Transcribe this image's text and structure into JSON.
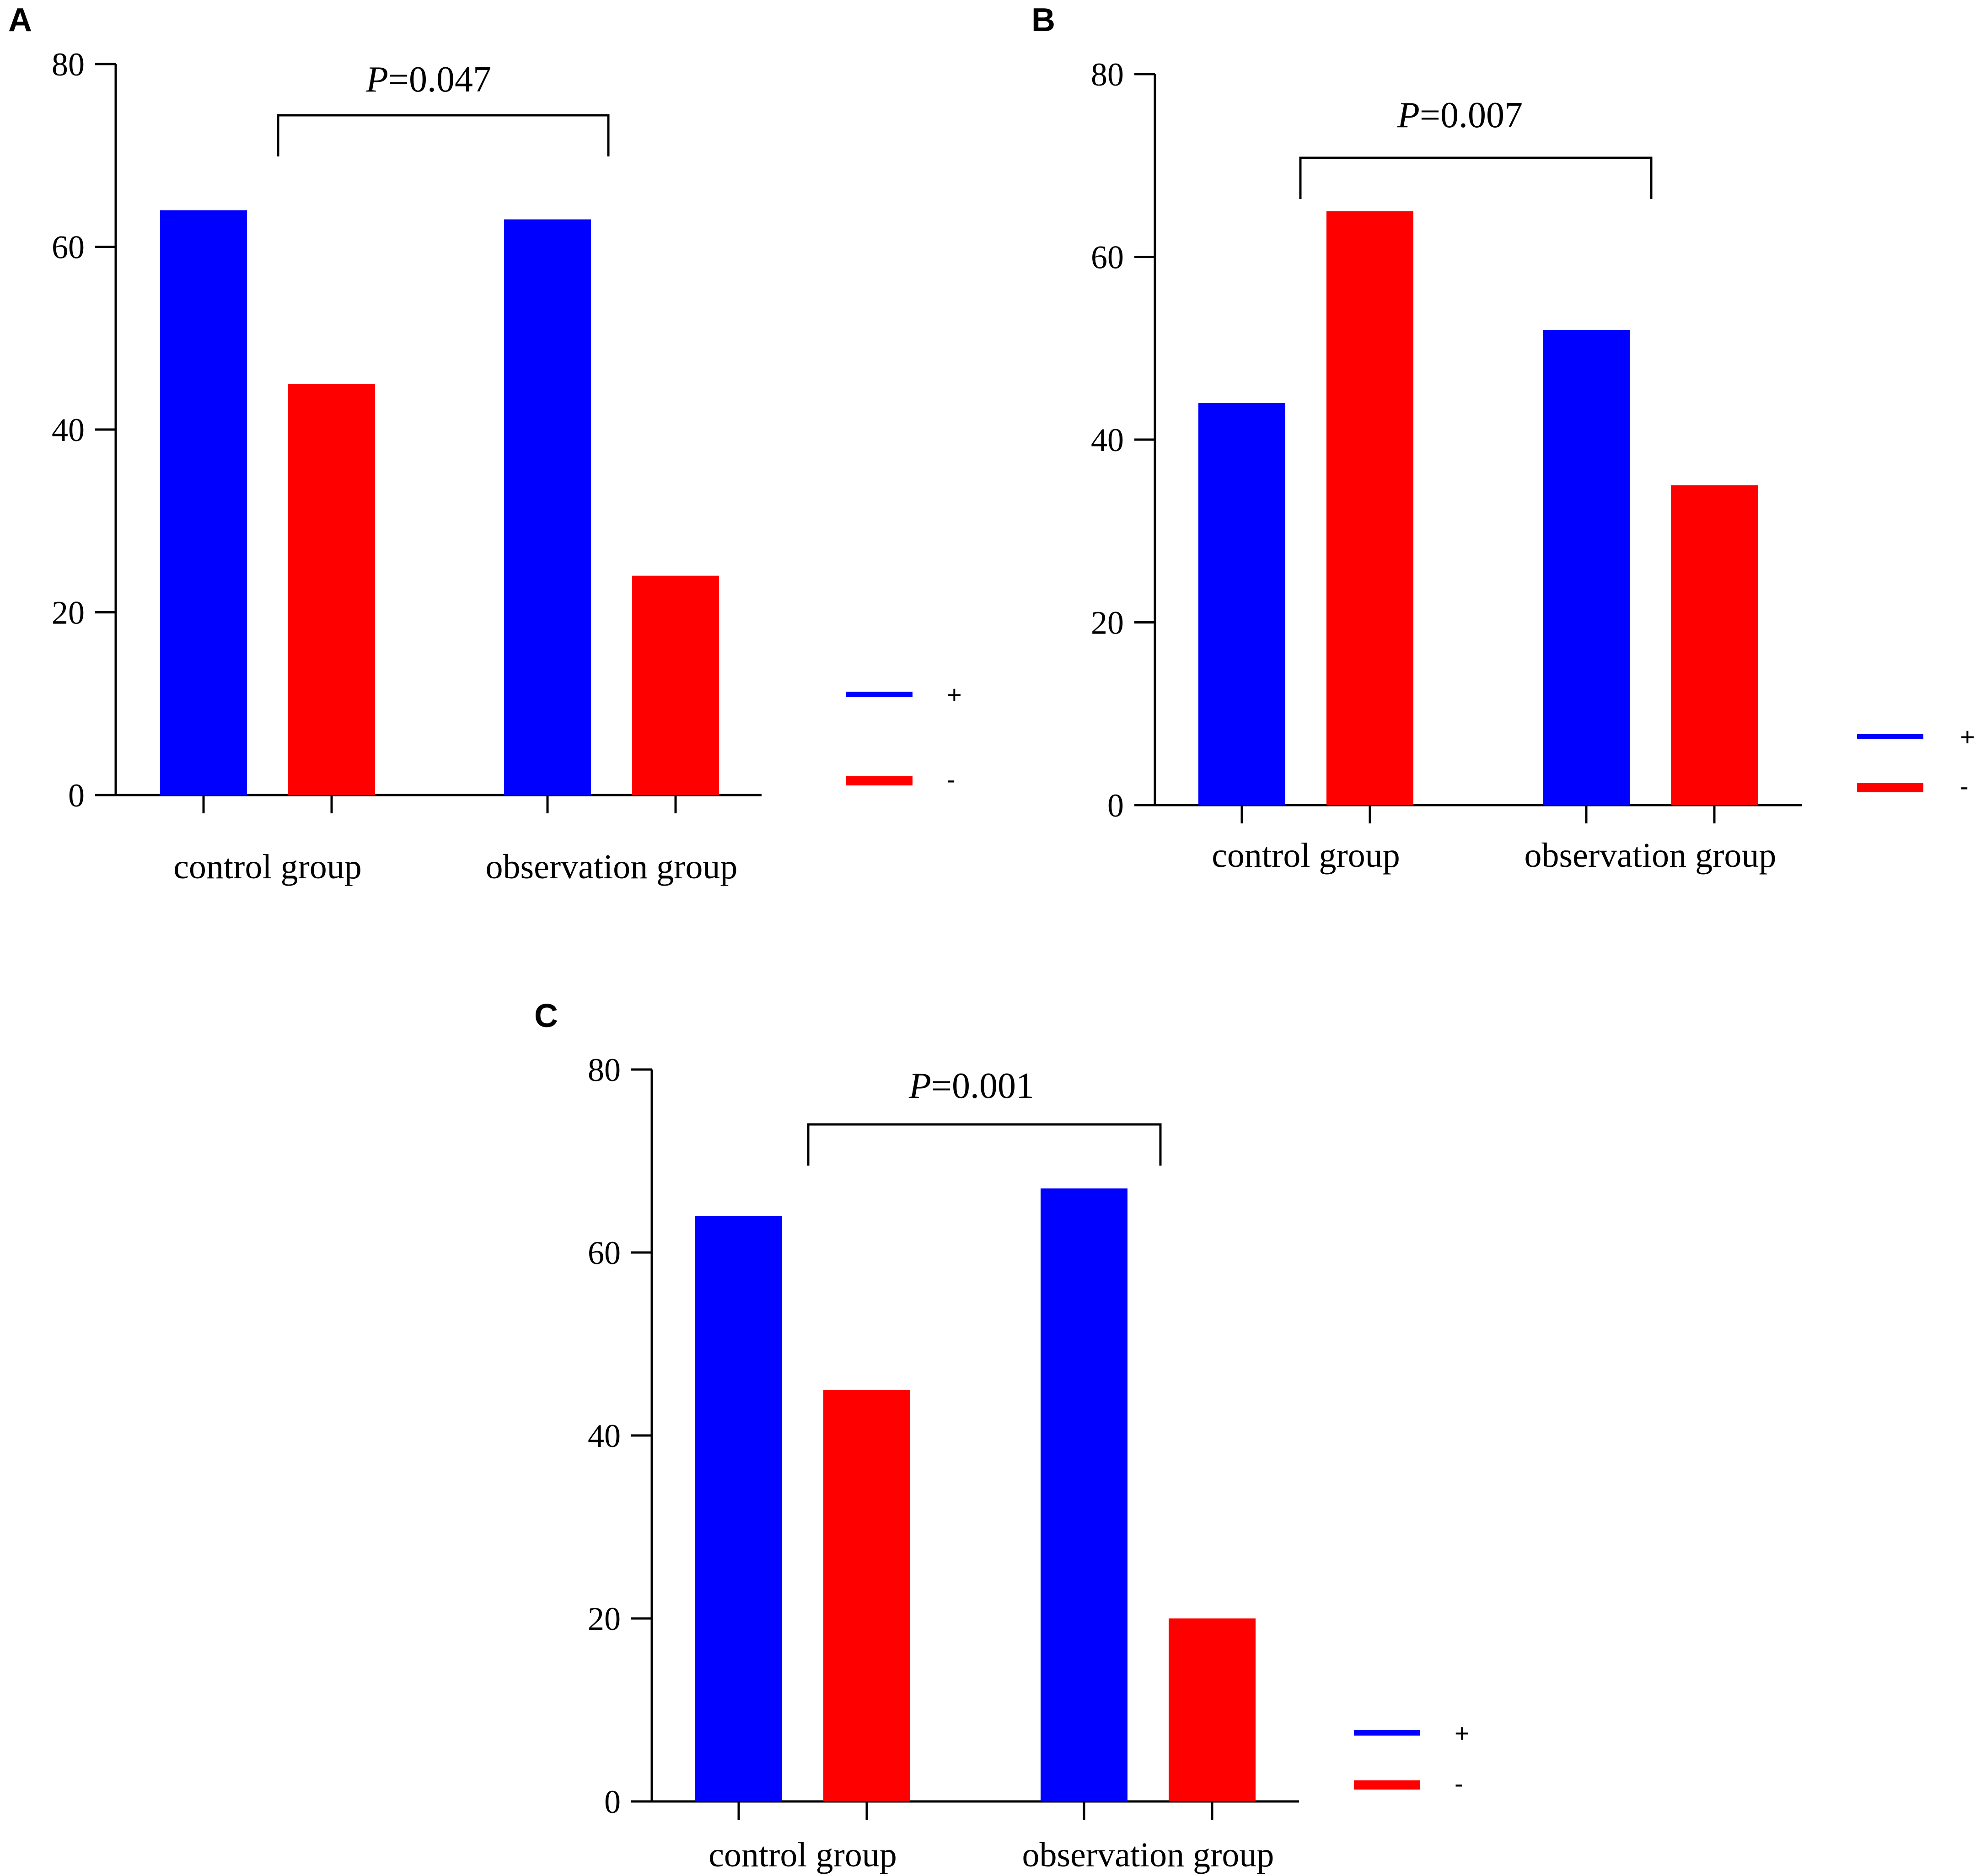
{
  "colors": {
    "positive": "#0000ff",
    "negative": "#ff0000",
    "axis": "#000000"
  },
  "chart_data": [
    {
      "panel": "A",
      "type": "bar",
      "categories": [
        "control group",
        "observation group"
      ],
      "series": [
        {
          "name": "+",
          "values": [
            64,
            63
          ]
        },
        {
          "name": "-",
          "values": [
            45,
            24
          ]
        }
      ],
      "ylim": [
        0,
        80
      ],
      "yticks": [
        0,
        20,
        40,
        60,
        80
      ],
      "annotation": {
        "italic": "P",
        "rest": "=0.047"
      },
      "legend": "right"
    },
    {
      "panel": "B",
      "type": "bar",
      "categories": [
        "control group",
        "observation group"
      ],
      "series": [
        {
          "name": "+",
          "values": [
            44,
            52
          ]
        },
        {
          "name": "-",
          "values": [
            65,
            35
          ]
        }
      ],
      "ylim": [
        0,
        80
      ],
      "yticks": [
        0,
        20,
        40,
        60,
        80
      ],
      "annotation": {
        "italic": "P",
        "rest": "=0.007"
      },
      "legend": "right"
    },
    {
      "panel": "C",
      "type": "bar",
      "categories": [
        "control group",
        "observation group"
      ],
      "series": [
        {
          "name": "+",
          "values": [
            64,
            67
          ]
        },
        {
          "name": "-",
          "values": [
            45,
            20
          ]
        }
      ],
      "ylim": [
        0,
        80
      ],
      "yticks": [
        0,
        20,
        40,
        60,
        80
      ],
      "annotation": {
        "italic": "P",
        "rest": "=0.001"
      },
      "legend": "right"
    }
  ]
}
